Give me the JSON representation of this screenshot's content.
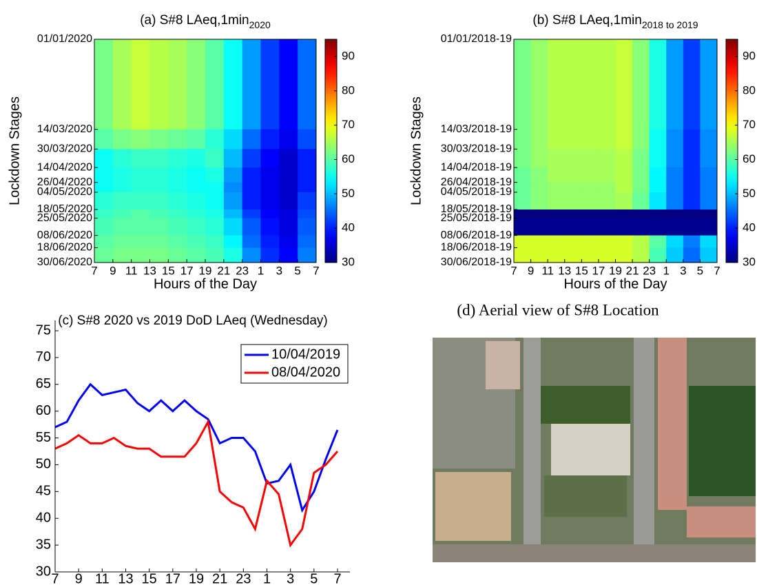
{
  "chart_data": [
    {
      "type": "heatmap",
      "title": "(a) S#8 LAeq,1min",
      "title_subscript": "2020",
      "ylabel": "Lockdown Stages",
      "xlabel": "Hours of the Day",
      "xlim": [
        7,
        31
      ],
      "xticks": [
        7,
        9,
        11,
        13,
        15,
        17,
        19,
        21,
        23,
        {
          "value": 25,
          "label": "1"
        },
        {
          "value": 27,
          "label": "3"
        },
        {
          "value": 29,
          "label": "5"
        },
        {
          "value": 31,
          "label": "7"
        }
      ],
      "ylim": [
        1,
        182
      ],
      "yticks": [
        {
          "value": 1,
          "label": "01/01/2020"
        },
        {
          "value": 74,
          "label": "14/03/2020"
        },
        {
          "value": 90,
          "label": "30/03/2020"
        },
        {
          "value": 105,
          "label": "14/04/2020"
        },
        {
          "value": 117,
          "label": "26/04/2020"
        },
        {
          "value": 125,
          "label": "04/05/2020"
        },
        {
          "value": 139,
          "label": "18/05/2020"
        },
        {
          "value": 146,
          "label": "25/05/2020"
        },
        {
          "value": 160,
          "label": "08/06/2020"
        },
        {
          "value": 170,
          "label": "18/06/2020"
        },
        {
          "value": 182,
          "label": "30/06/2020"
        }
      ],
      "zlim": [
        30,
        95
      ],
      "zticks": [
        30,
        40,
        50,
        60,
        70,
        80,
        90
      ],
      "colormap": "jet",
      "z": [
        [
          62,
          65,
          67,
          66,
          65,
          63,
          60,
          55,
          48,
          42,
          38,
          45
        ],
        [
          60,
          62,
          63,
          62,
          61,
          60,
          57,
          52,
          45,
          40,
          37,
          43
        ],
        [
          55,
          57,
          58,
          58,
          57,
          56,
          58,
          50,
          42,
          38,
          35,
          40
        ],
        [
          55,
          56,
          57,
          57,
          56,
          55,
          56,
          48,
          40,
          37,
          35,
          40
        ],
        [
          55,
          56,
          57,
          57,
          56,
          55,
          55,
          47,
          40,
          37,
          35,
          40
        ],
        [
          57,
          58,
          58,
          58,
          57,
          56,
          55,
          48,
          40,
          37,
          35,
          42
        ],
        [
          58,
          59,
          60,
          59,
          58,
          57,
          56,
          50,
          42,
          38,
          36,
          43
        ],
        [
          59,
          60,
          60,
          60,
          59,
          58,
          57,
          52,
          44,
          39,
          36,
          44
        ],
        [
          60,
          61,
          61,
          61,
          60,
          59,
          58,
          54,
          45,
          40,
          37,
          45
        ],
        [
          61,
          62,
          62,
          62,
          61,
          60,
          59,
          56,
          47,
          41,
          38,
          46
        ]
      ]
    },
    {
      "type": "heatmap",
      "title": "(b) S#8 LAeq,1min",
      "title_subscript": "2018 to 2019",
      "ylabel": "Lockdown Stages",
      "xlabel": "Hours of the Day",
      "xlim": [
        7,
        31
      ],
      "xticks": [
        7,
        9,
        11,
        13,
        15,
        17,
        19,
        21,
        23,
        {
          "value": 25,
          "label": "1"
        },
        {
          "value": 27,
          "label": "3"
        },
        {
          "value": 29,
          "label": "5"
        },
        {
          "value": 31,
          "label": "7"
        }
      ],
      "ylim": [
        1,
        182
      ],
      "yticks": [
        {
          "value": 1,
          "label": "01/01/2018-19"
        },
        {
          "value": 74,
          "label": "14/03/2018-19"
        },
        {
          "value": 90,
          "label": "30/03/2018-19"
        },
        {
          "value": 105,
          "label": "14/04/2018-19"
        },
        {
          "value": 117,
          "label": "26/04/2018-19"
        },
        {
          "value": 125,
          "label": "04/05/2018-19"
        },
        {
          "value": 139,
          "label": "18/05/2018-19"
        },
        {
          "value": 146,
          "label": "25/05/2018-19"
        },
        {
          "value": 160,
          "label": "08/06/2018-19"
        },
        {
          "value": 170,
          "label": "18/06/2018-19"
        },
        {
          "value": 182,
          "label": "30/06/2018-19"
        }
      ],
      "zlim": [
        30,
        95
      ],
      "zticks": [
        30,
        40,
        50,
        60,
        70,
        80,
        90
      ],
      "colormap": "jet",
      "z": [
        [
          62,
          64,
          66,
          66,
          66,
          66,
          67,
          63,
          56,
          48,
          42,
          48
        ],
        [
          62,
          64,
          66,
          66,
          66,
          66,
          67,
          63,
          55,
          47,
          41,
          47
        ],
        [
          62,
          64,
          65,
          65,
          65,
          65,
          66,
          62,
          55,
          47,
          41,
          47
        ],
        [
          61,
          63,
          65,
          65,
          65,
          65,
          66,
          62,
          54,
          46,
          41,
          46
        ],
        [
          61,
          63,
          64,
          64,
          64,
          64,
          66,
          62,
          54,
          46,
          41,
          46
        ],
        [
          61,
          63,
          64,
          64,
          64,
          64,
          65,
          61,
          53,
          46,
          41,
          46
        ],
        [
          30,
          30,
          30,
          30,
          30,
          30,
          30,
          30,
          30,
          30,
          30,
          30
        ],
        [
          31,
          31,
          31,
          31,
          31,
          31,
          31,
          31,
          31,
          31,
          31,
          31
        ],
        [
          68,
          68,
          68,
          68,
          68,
          68,
          68,
          66,
          60,
          52,
          46,
          52
        ],
        [
          68,
          68,
          68,
          68,
          68,
          68,
          68,
          66,
          59,
          51,
          45,
          51
        ]
      ]
    },
    {
      "type": "line",
      "title": "(c) S#8 2020 vs 2019 DoD LAeq (Wednesday)",
      "x": [
        7,
        8,
        9,
        10,
        11,
        12,
        13,
        14,
        15,
        16,
        17,
        18,
        19,
        20,
        21,
        22,
        23,
        24,
        25,
        26,
        27,
        28,
        29,
        30,
        31
      ],
      "xlim": [
        7,
        31
      ],
      "xticks": [
        7,
        9,
        11,
        13,
        15,
        17,
        19,
        21,
        23,
        {
          "value": 25,
          "label": "1"
        },
        {
          "value": 27,
          "label": "3"
        },
        {
          "value": 29,
          "label": "5"
        },
        {
          "value": 31,
          "label": "7"
        }
      ],
      "ylim": [
        30,
        75
      ],
      "yticks": [
        30,
        35,
        40,
        45,
        50,
        55,
        60,
        65,
        70,
        75
      ],
      "legend": "upper right",
      "series": [
        {
          "name": "10/04/2019",
          "color": "#0000ff",
          "values": [
            57,
            58,
            62,
            65,
            63,
            63.5,
            64,
            61.5,
            60,
            62,
            60,
            62,
            60,
            58.5,
            54,
            55,
            55,
            52.5,
            46.5,
            47,
            50,
            41.5,
            45,
            51,
            56.5
          ]
        },
        {
          "name": "08/04/2020",
          "color": "#ff0000",
          "values": [
            53,
            54,
            55.5,
            54,
            54,
            55,
            53.5,
            53,
            53,
            51.5,
            51.5,
            51.5,
            54,
            58,
            45,
            43,
            42,
            38,
            47,
            44.5,
            35,
            38,
            48.5,
            50,
            52.5
          ]
        }
      ]
    }
  ],
  "panel_d": {
    "title": "(d) Aerial view of S#8 Location"
  }
}
